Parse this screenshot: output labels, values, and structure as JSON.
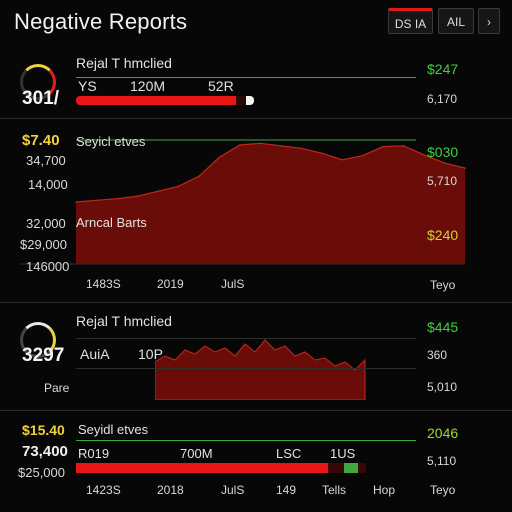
{
  "header": {
    "title": "Negative Reports",
    "btn1": "DS IA",
    "btn2": "AIL",
    "btn3": "›"
  },
  "row1": {
    "gauge": "301/",
    "name": "Rejal T hmclied",
    "col1": "YS",
    "col2": "120M",
    "col3": "52R",
    "value": "$247",
    "sub": "6,170",
    "progress": 0.9
  },
  "chart": {
    "series1": {
      "value": "$7.40",
      "label": "Seyicl etves",
      "y1": "34,700",
      "y2": "14,000",
      "r1": "$030",
      "r2": "5,710"
    },
    "series2": {
      "y1": "32,000",
      "label": "Arncal Barts",
      "y2": "$29,000",
      "y3": "146000",
      "r1": "$240"
    },
    "xticks": [
      "1483S",
      "2019",
      "JulS"
    ],
    "xright": "Teyo",
    "colors": {
      "fill": "#6a0d08",
      "line": "#c0281c"
    }
  },
  "row2": {
    "gauge": "3297",
    "name": "Rejal T hmclied",
    "col1": "AuiA",
    "col2": "10P",
    "bottom": "Pare",
    "value": "$445",
    "sub1": "360",
    "sub2": "5,010"
  },
  "row3": {
    "value": "$15.40",
    "label": "Seyidl etves",
    "amount": "73,400",
    "amount2": "$25,000",
    "col1": "R019",
    "col2": "700M",
    "col3": "LSC",
    "col4": "1US",
    "right": "2046",
    "right2": "5,110",
    "progress": 0.87,
    "xticks": [
      "1423S",
      "2018",
      "JulS",
      "149",
      "Tells",
      "Hop",
      "Teyo"
    ]
  },
  "chart_data": {
    "type": "area",
    "series": [
      {
        "values": [
          7.5,
          7.7,
          7.9,
          8.2,
          8.8,
          9.4,
          10.6,
          12.9,
          14.4,
          14.6,
          14.3,
          14.0,
          13.4,
          12.6,
          13.1,
          14.2,
          14.3,
          13.2,
          12.2,
          11.6
        ]
      }
    ]
  }
}
